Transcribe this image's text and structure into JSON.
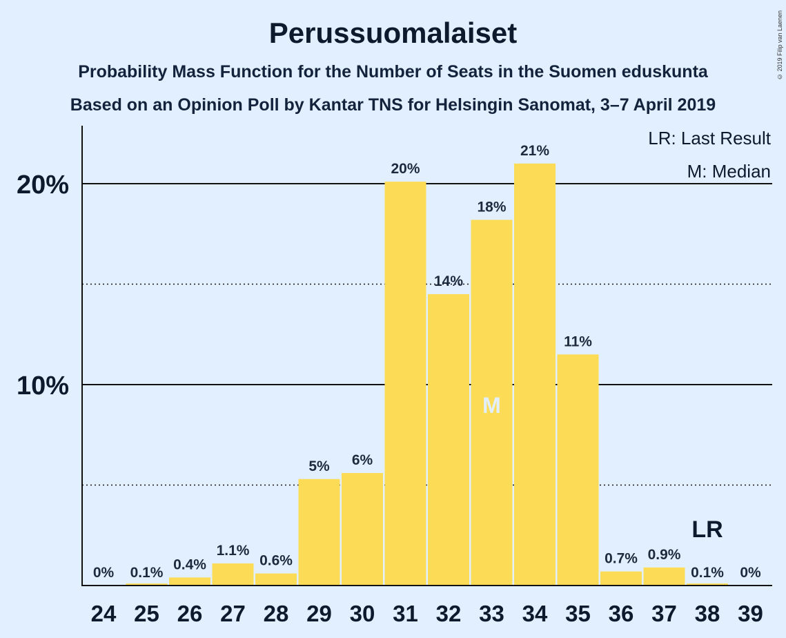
{
  "chart_data": {
    "type": "bar",
    "title": "Perussuomalaiset",
    "subtitle": "Probability Mass Function for the Number of Seats in the Suomen eduskunta",
    "subtitle2": "Based on an Opinion Poll by Kantar TNS for Helsingin Sanomat, 3–7 April 2019",
    "copyright": "© 2019 Filip van Laenen",
    "categories": [
      "24",
      "25",
      "26",
      "27",
      "28",
      "29",
      "30",
      "31",
      "32",
      "33",
      "34",
      "35",
      "36",
      "37",
      "38",
      "39"
    ],
    "values": [
      0,
      0.1,
      0.4,
      1.1,
      0.6,
      5.3,
      5.6,
      20.1,
      14.5,
      18.2,
      21.0,
      11.5,
      0.7,
      0.9,
      0.1,
      0
    ],
    "labels": [
      "0%",
      "0.1%",
      "0.4%",
      "1.1%",
      "0.6%",
      "5%",
      "6%",
      "20%",
      "14%",
      "18%",
      "21%",
      "11%",
      "0.7%",
      "0.9%",
      "0.1%",
      "0%"
    ],
    "yticks": [
      {
        "value": 10,
        "label": "10%"
      },
      {
        "value": 20,
        "label": "20%"
      }
    ],
    "dotted_gridlines": [
      5,
      15
    ],
    "ylim": [
      0,
      22.8
    ],
    "median_category": "33",
    "median_marker": "M",
    "last_result_category": "38",
    "last_result_marker": "LR",
    "legend": [
      "LR: Last Result",
      "M: Median"
    ],
    "legend_position": "top-right",
    "bar_color": "#fcdc56",
    "background_color": "#e2efff"
  }
}
